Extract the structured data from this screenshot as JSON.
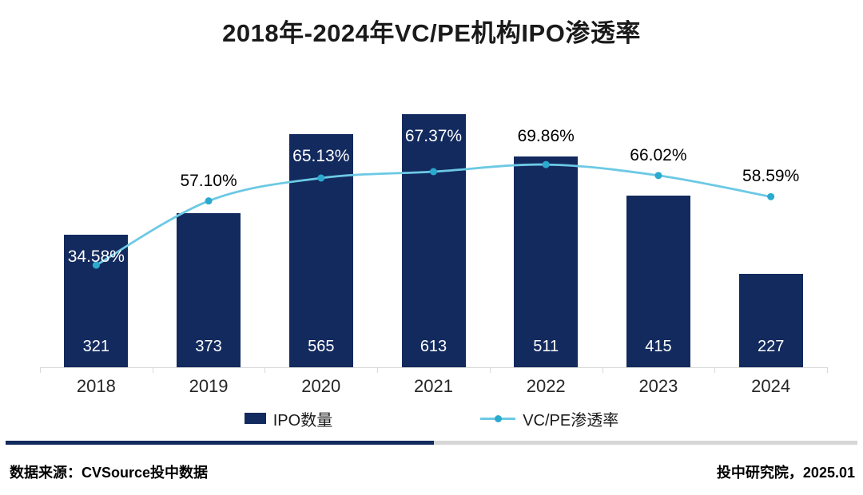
{
  "title": "2018年-2024年VC/PE机构IPO渗透率",
  "chart_data": {
    "type": "combo-bar-line",
    "title": "2018年-2024年VC/PE机构IPO渗透率",
    "categories": [
      "2018",
      "2019",
      "2020",
      "2021",
      "2022",
      "2023",
      "2024"
    ],
    "series": [
      {
        "name": "IPO数量",
        "type": "bar",
        "values": [
          321,
          373,
          565,
          613,
          511,
          415,
          227
        ],
        "value_labels": [
          "321",
          "373",
          "565",
          "613",
          "511",
          "415",
          "227"
        ],
        "color": "#132a5e"
      },
      {
        "name": "VC/PE渗透率",
        "type": "line",
        "axis": "secondary",
        "values": [
          34.58,
          57.1,
          65.13,
          67.37,
          69.86,
          66.02,
          58.59
        ],
        "value_labels": [
          "34.58%",
          "57.10%",
          "65.13%",
          "67.37%",
          "69.86%",
          "66.02%",
          "58.59%"
        ],
        "line_color": "#6cc9e4",
        "marker_color": "#2baace"
      }
    ],
    "xlabel": "",
    "ylabel": "",
    "grid": false,
    "legend_position": "bottom",
    "smooth_line": true,
    "bar_value_labels_inside_base": true
  },
  "legend": {
    "bar_label": "IPO数量",
    "line_label": "VC/PE渗透率"
  },
  "footer": {
    "source": "数据来源：CVSource投中数据",
    "credit": "投中研究院，2025.01"
  },
  "colors": {
    "bar": "#132a5e",
    "line": "#6cc9e4",
    "marker": "#2baace",
    "axis": "#d9d9d9",
    "divider_navy": "#132a5e",
    "divider_gray": "#d6d6d6",
    "title_text": "#1a1a1a",
    "pct_label_dark": "#000000",
    "pct_label_light": "#ffffff"
  }
}
